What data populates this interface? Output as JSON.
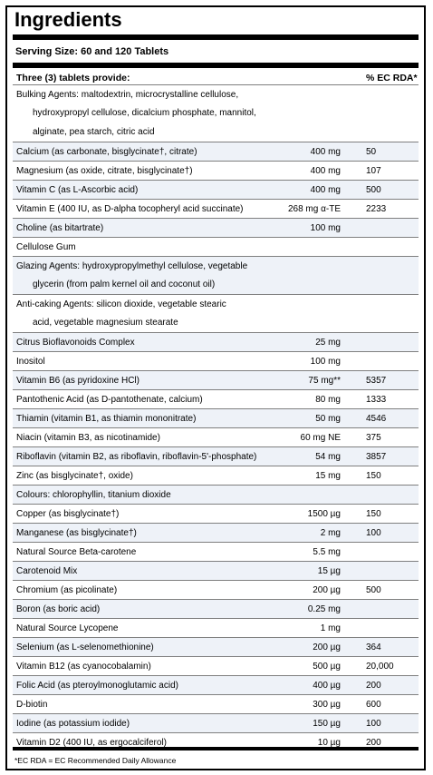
{
  "title": "Ingredients",
  "serving": "Serving Size: 60 and 120 Tablets",
  "header": {
    "name": "Three (3) tablets provide:",
    "rda": "% EC RDA*"
  },
  "rows": [
    {
      "name": "Bulking Agents: maltodextrin, microcrystalline cellulose,",
      "amount": "",
      "rda": "",
      "cont": false
    },
    {
      "name": "hydroxypropyl cellulose, dicalcium phosphate, mannitol,",
      "amount": "",
      "rda": "",
      "cont": true
    },
    {
      "name": "alginate, pea starch, citric acid",
      "amount": "",
      "rda": "",
      "cont": true
    },
    {
      "name": "Calcium (as carbonate, bisglycinate†, citrate)",
      "amount": "400 mg",
      "rda": "50",
      "cont": false
    },
    {
      "name": "Magnesium (as oxide, citrate, bisglycinate†)",
      "amount": "400 mg",
      "rda": "107",
      "cont": false
    },
    {
      "name": "Vitamin C (as L-Ascorbic acid)",
      "amount": "400 mg",
      "rda": "500",
      "cont": false
    },
    {
      "name": "Vitamin E (400 IU, as D-alpha tocopheryl acid succinate)",
      "amount": "268 mg α-TE",
      "rda": "2233",
      "cont": false
    },
    {
      "name": "Choline (as bitartrate)",
      "amount": "100 mg",
      "rda": "",
      "cont": false
    },
    {
      "name": "Cellulose Gum",
      "amount": "",
      "rda": "",
      "cont": false
    },
    {
      "name": "Glazing Agents: hydroxypropylmethyl cellulose, vegetable",
      "amount": "",
      "rda": "",
      "cont": false
    },
    {
      "name": "glycerin (from palm kernel oil and coconut oil)",
      "amount": "",
      "rda": "",
      "cont": true
    },
    {
      "name": "Anti-caking Agents: silicon dioxide, vegetable stearic",
      "amount": "",
      "rda": "",
      "cont": false
    },
    {
      "name": "acid, vegetable magnesium stearate",
      "amount": "",
      "rda": "",
      "cont": true
    },
    {
      "name": "Citrus Bioflavonoids Complex",
      "amount": "25 mg",
      "rda": "",
      "cont": false
    },
    {
      "name": "Inositol",
      "amount": "100 mg",
      "rda": "",
      "cont": false
    },
    {
      "name": "Vitamin B6 (as pyridoxine HCl)",
      "amount": "75 mg**",
      "rda": "5357",
      "cont": false
    },
    {
      "name": "Pantothenic Acid (as D-pantothenate, calcium)",
      "amount": "80 mg",
      "rda": "1333",
      "cont": false
    },
    {
      "name": "Thiamin (vitamin B1, as thiamin mononitrate)",
      "amount": "50 mg",
      "rda": "4546",
      "cont": false
    },
    {
      "name": "Niacin (vitamin B3, as nicotinamide)",
      "amount": "60 mg NE",
      "rda": "375",
      "cont": false
    },
    {
      "name": "Riboflavin (vitamin B2, as riboflavin, riboflavin-5'-phosphate)",
      "amount": "54 mg",
      "rda": "3857",
      "cont": false
    },
    {
      "name": "Zinc (as bisglycinate†, oxide)",
      "amount": "15 mg",
      "rda": "150",
      "cont": false
    },
    {
      "name": "Colours: chlorophyllin, titanium dioxide",
      "amount": "",
      "rda": "",
      "cont": false
    },
    {
      "name": "Copper (as bisglycinate†)",
      "amount": "1500 µg",
      "rda": "150",
      "cont": false
    },
    {
      "name": "Manganese (as bisglycinate†)",
      "amount": "2 mg",
      "rda": "100",
      "cont": false
    },
    {
      "name": "Natural Source Beta-carotene",
      "amount": "5.5 mg",
      "rda": "",
      "cont": false
    },
    {
      "name": "Carotenoid Mix",
      "amount": "15 µg",
      "rda": "",
      "cont": false
    },
    {
      "name": "Chromium (as picolinate)",
      "amount": "200 µg",
      "rda": "500",
      "cont": false
    },
    {
      "name": "Boron (as boric acid)",
      "amount": "0.25 mg",
      "rda": "",
      "cont": false
    },
    {
      "name": "Natural Source Lycopene",
      "amount": "1 mg",
      "rda": "",
      "cont": false
    },
    {
      "name": "Selenium (as L-selenomethionine)",
      "amount": "200 µg",
      "rda": "364",
      "cont": false
    },
    {
      "name": "Vitamin B12 (as cyanocobalamin)",
      "amount": "500 µg",
      "rda": "20,000",
      "cont": false
    },
    {
      "name": "Folic Acid (as pteroylmonoglutamic acid)",
      "amount": "400 µg",
      "rda": "200",
      "cont": false
    },
    {
      "name": "D-biotin",
      "amount": "300 µg",
      "rda": "600",
      "cont": false
    },
    {
      "name": "Iodine (as potassium iodide)",
      "amount": "150 µg",
      "rda": "100",
      "cont": false
    },
    {
      "name": "Vitamin D2 (400 IU, as ergocalciferol)",
      "amount": "10 µg",
      "rda": "200",
      "cont": false
    }
  ],
  "footer": "*EC RDA = EC Recommended Daily Allowance"
}
